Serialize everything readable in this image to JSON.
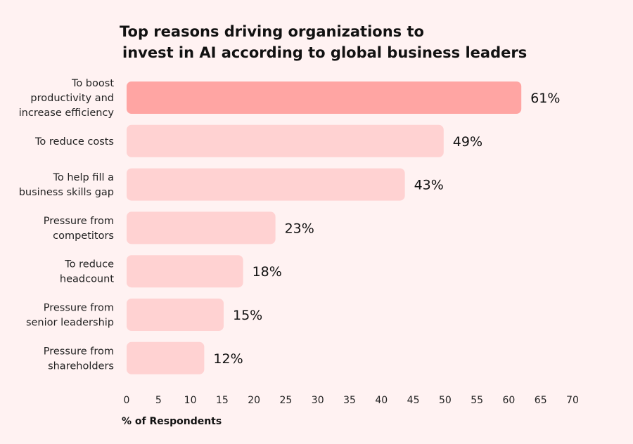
{
  "chart_data": {
    "type": "bar",
    "orientation": "horizontal",
    "title_lines": [
      "Top reasons driving organizations to",
      "invest in AI according to global business leaders"
    ],
    "categories": [
      [
        "To boost",
        "productivity and",
        "increase efficiency"
      ],
      [
        "To reduce costs"
      ],
      [
        "To help fill a",
        "business skills gap"
      ],
      [
        "Pressure from",
        "competitors"
      ],
      [
        "To reduce",
        "headcount"
      ],
      [
        "Pressure from",
        "senior leadership"
      ],
      [
        "Pressure from",
        "shareholders"
      ]
    ],
    "values": [
      61,
      49,
      43,
      23,
      18,
      15,
      12
    ],
    "data_labels": [
      "61%",
      "49%",
      "43%",
      "23%",
      "18%",
      "15%",
      "12%"
    ],
    "xlabel": "% of Respondents",
    "xlim": [
      0,
      70
    ],
    "xticks": [
      0,
      5,
      10,
      15,
      20,
      25,
      30,
      35,
      40,
      45,
      50,
      55,
      60,
      65,
      70
    ],
    "grid": false,
    "colors": {
      "highlight": "#FFA5A3",
      "bar": "#FFD2D2",
      "background": "#FFF2F2"
    }
  }
}
